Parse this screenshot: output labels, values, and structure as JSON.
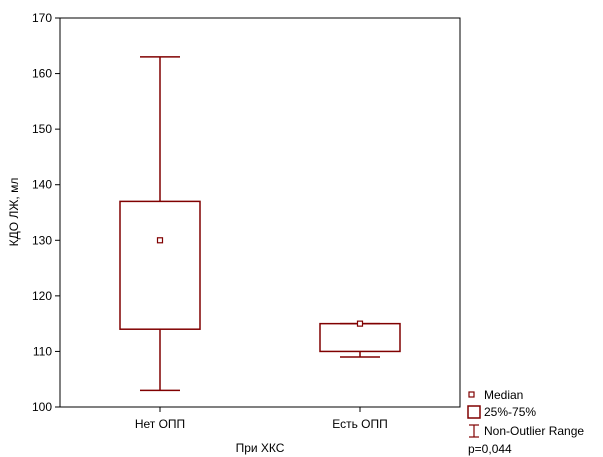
{
  "chart_data": {
    "type": "boxplot",
    "xlabel": "При ХКС",
    "ylabel": "КДО ЛЖ, мл",
    "ylim": [
      100,
      170
    ],
    "yticks": [
      100,
      110,
      120,
      130,
      140,
      150,
      160,
      170
    ],
    "categories": [
      "Нет ОПП",
      "Есть ОПП"
    ],
    "boxes": [
      {
        "category": "Нет ОПП",
        "min": 103,
        "q1": 114,
        "median": 130,
        "q3": 137,
        "max": 163
      },
      {
        "category": "Есть ОПП",
        "min": 109,
        "q1": 110,
        "median": 115,
        "q3": 115,
        "max": 115
      }
    ],
    "legend": {
      "position": "bottom-right",
      "items": [
        "Median",
        "25%-75%",
        "Non-Outlier Range"
      ]
    },
    "annotation": "p=0,044",
    "color": "#800000"
  }
}
